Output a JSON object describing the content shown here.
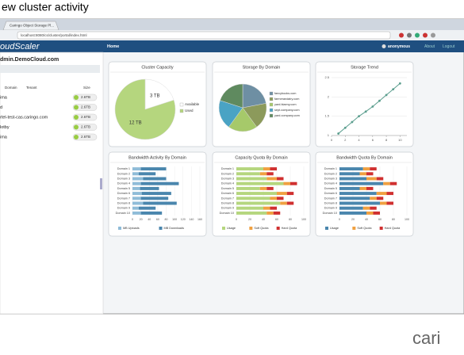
{
  "slide_title": "ew cluster activity",
  "browser": {
    "tab": "Caringo Object Storage Pl...",
    "url": "localhost:8080/cs/cluster/portal/index.html"
  },
  "header": {
    "logo": "oudScaler",
    "nav": "Home",
    "user": "anonymous",
    "links": [
      "About",
      "Logout"
    ]
  },
  "sidebar": {
    "title": "dmin.DemoCloud.com",
    "columns": [
      "Domain",
      "Tenant",
      "Size"
    ],
    "rows": [
      {
        "name": "ima",
        "size": "2.6TB"
      },
      {
        "name": "d",
        "size": "2.6TB"
      },
      {
        "name": "rtel-test-cas.caringo.com",
        "size": "2.6TB"
      },
      {
        "name": "lotby",
        "size": "2.6TB"
      },
      {
        "name": "ima",
        "size": "2.6TB"
      }
    ]
  },
  "footer_logo": "cari",
  "chart_data": [
    {
      "type": "pie",
      "title": "Cluster Capacity",
      "categories": [
        "Available",
        "Used"
      ],
      "values": [
        3,
        12
      ],
      "value_labels": [
        "3 TB",
        "12 TB"
      ],
      "colors": [
        "#ffffff",
        "#b5d67e"
      ]
    },
    {
      "type": "pie",
      "title": "Storage By Domain",
      "categories": [
        "fancybooks.com",
        "farmerandairy.com",
        "yard.blaeny.com",
        "sept.company.com",
        "yard.company.com"
      ],
      "values": [
        22,
        18,
        20,
        20,
        20
      ],
      "colors": [
        "#6e8fa3",
        "#8c9a5b",
        "#a6c96a",
        "#4aa3c4",
        "#5f8a5f"
      ]
    },
    {
      "type": "line",
      "title": "Storage Trend",
      "x": [
        1,
        2,
        3,
        4,
        5,
        6,
        7,
        8,
        9,
        10
      ],
      "values": [
        1.05,
        1.2,
        1.35,
        1.5,
        1.62,
        1.75,
        1.9,
        2.05,
        2.2,
        2.35
      ],
      "xlim": [
        0,
        11
      ],
      "xticks": [
        0,
        2,
        4,
        6,
        8,
        10
      ],
      "ylim": [
        1,
        2.5
      ],
      "yticks": [
        1,
        1.5,
        2,
        2.5
      ],
      "color": "#5b9e8e"
    },
    {
      "type": "hbar",
      "title": "Bandwidth Activity By Domain",
      "categories": [
        "Domain 1",
        "Domain 2",
        "Domain 3",
        "Domain 4",
        "Domain 5",
        "Domain 6",
        "Domain 7",
        "Domain 8",
        "Domain 9",
        "Domain 10"
      ],
      "series": [
        {
          "name": "MB Uploads",
          "color": "#8fbcd8",
          "values": [
            20,
            15,
            25,
            20,
            18,
            22,
            20,
            25,
            15,
            20
          ]
        },
        {
          "name": "MB Downloads",
          "color": "#4a86ad",
          "values": [
            60,
            40,
            55,
            90,
            45,
            70,
            65,
            80,
            40,
            50
          ]
        }
      ],
      "xlim": [
        0,
        160
      ],
      "xticks": [
        0,
        20,
        40,
        60,
        80,
        100,
        120,
        140,
        160
      ]
    },
    {
      "type": "hbar",
      "title": "Capacity Quota By Domain",
      "categories": [
        "Domain 1",
        "Domain 2",
        "Domain 3",
        "Domain 4",
        "Domain 5",
        "Domain 6",
        "Domain 7",
        "Domain 8",
        "Domain 9",
        "Domain 10"
      ],
      "series": [
        {
          "name": "Usage",
          "color": "#b5d67e",
          "values": [
            40,
            35,
            45,
            70,
            35,
            60,
            50,
            65,
            40,
            45
          ]
        },
        {
          "name": "Soft Quota",
          "color": "#f0a040",
          "values": [
            10,
            10,
            15,
            10,
            10,
            15,
            10,
            10,
            10,
            10
          ]
        },
        {
          "name": "Hard Quota",
          "color": "#d03030",
          "values": [
            10,
            10,
            10,
            10,
            10,
            10,
            10,
            10,
            10,
            10
          ]
        }
      ],
      "xlim": [
        0,
        100
      ],
      "xticks": [
        0,
        20,
        40,
        60,
        80,
        100
      ]
    },
    {
      "type": "hbar",
      "title": "Bandwidth Quota By Domain",
      "categories": [
        "Domain 1",
        "Domain 2",
        "Domain 3",
        "Domain 4",
        "Domain 5",
        "Domain 6",
        "Domain 7",
        "Domain 8",
        "Domain 9",
        "Domain 10"
      ],
      "series": [
        {
          "name": "Usage",
          "color": "#4a86ad",
          "values": [
            35,
            30,
            40,
            65,
            30,
            55,
            45,
            60,
            35,
            40
          ]
        },
        {
          "name": "Soft Quota",
          "color": "#f0a040",
          "values": [
            10,
            10,
            15,
            10,
            10,
            15,
            10,
            10,
            10,
            10
          ]
        },
        {
          "name": "Hard Quota",
          "color": "#d03030",
          "values": [
            10,
            10,
            10,
            10,
            10,
            10,
            10,
            10,
            10,
            10
          ]
        }
      ],
      "xlim": [
        0,
        100
      ],
      "xticks": [
        0,
        20,
        40,
        60,
        80,
        100
      ]
    }
  ]
}
